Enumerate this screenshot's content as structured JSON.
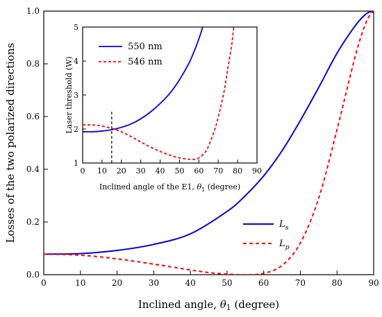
{
  "chart_data": [
    {
      "type": "line",
      "xlabel": "Inclined angle, θ1 (degree)",
      "ylabel": "Losses of the two polarized directions",
      "xlim": [
        0,
        90
      ],
      "ylim": [
        0,
        1.0
      ],
      "xticks": [
        0,
        10,
        20,
        30,
        40,
        50,
        60,
        70,
        80,
        90
      ],
      "yticks": [
        0.0,
        0.2,
        0.4,
        0.6,
        0.8,
        1.0
      ],
      "ytick_labels": [
        "0.0",
        "0.2",
        "0.4",
        "0.6",
        "0.8",
        "1.0"
      ],
      "legend_position": "lower-right",
      "series": [
        {
          "name": "Ls",
          "color": "#0000e0",
          "style": "solid",
          "x": [
            0,
            10,
            20,
            30,
            40,
            50,
            55,
            60,
            65,
            70,
            75,
            80,
            85,
            88,
            90
          ],
          "y": [
            0.078,
            0.08,
            0.092,
            0.115,
            0.155,
            0.24,
            0.3,
            0.375,
            0.47,
            0.585,
            0.71,
            0.84,
            0.945,
            0.99,
            1.0
          ]
        },
        {
          "name": "Lp",
          "color": "#ff0000",
          "style": "dashed",
          "x": [
            0,
            10,
            20,
            30,
            40,
            45,
            50,
            55,
            60,
            65,
            70,
            75,
            80,
            85,
            88,
            90
          ],
          "y": [
            0.078,
            0.074,
            0.06,
            0.04,
            0.018,
            0.008,
            0.002,
            0.0,
            0.005,
            0.035,
            0.12,
            0.29,
            0.55,
            0.83,
            0.96,
            1.0
          ]
        }
      ]
    },
    {
      "type": "line",
      "xlabel": "Inclined angle of the E1, θ1 (degree)",
      "ylabel": "Laser threshold (W)",
      "xlim": [
        0,
        90
      ],
      "ylim": [
        1,
        5
      ],
      "xticks": [
        0,
        10,
        20,
        30,
        40,
        50,
        60,
        70,
        80,
        90
      ],
      "yticks": [
        1,
        2,
        3,
        4,
        5
      ],
      "legend_position": "top-left",
      "annotation": {
        "type": "vertical-dashed-line",
        "x": 15
      },
      "series": [
        {
          "name": "550 nm",
          "color": "#0000e0",
          "style": "solid",
          "x": [
            0,
            5,
            10,
            15,
            20,
            25,
            30,
            35,
            40,
            45,
            50,
            55,
            58,
            60,
            62
          ],
          "y": [
            1.92,
            1.92,
            1.94,
            1.98,
            2.05,
            2.15,
            2.3,
            2.5,
            2.75,
            3.05,
            3.45,
            3.95,
            4.35,
            4.65,
            5.0
          ]
        },
        {
          "name": "546 nm",
          "color": "#ff0000",
          "style": "dashed",
          "x": [
            0,
            5,
            10,
            15,
            20,
            25,
            30,
            35,
            40,
            45,
            50,
            55,
            58,
            60,
            63,
            65,
            68,
            70,
            73,
            75,
            77,
            78
          ],
          "y": [
            2.12,
            2.12,
            2.09,
            2.02,
            1.92,
            1.78,
            1.62,
            1.47,
            1.34,
            1.23,
            1.15,
            1.11,
            1.11,
            1.15,
            1.3,
            1.5,
            1.95,
            2.35,
            3.1,
            3.8,
            4.5,
            5.0
          ]
        }
      ]
    }
  ]
}
